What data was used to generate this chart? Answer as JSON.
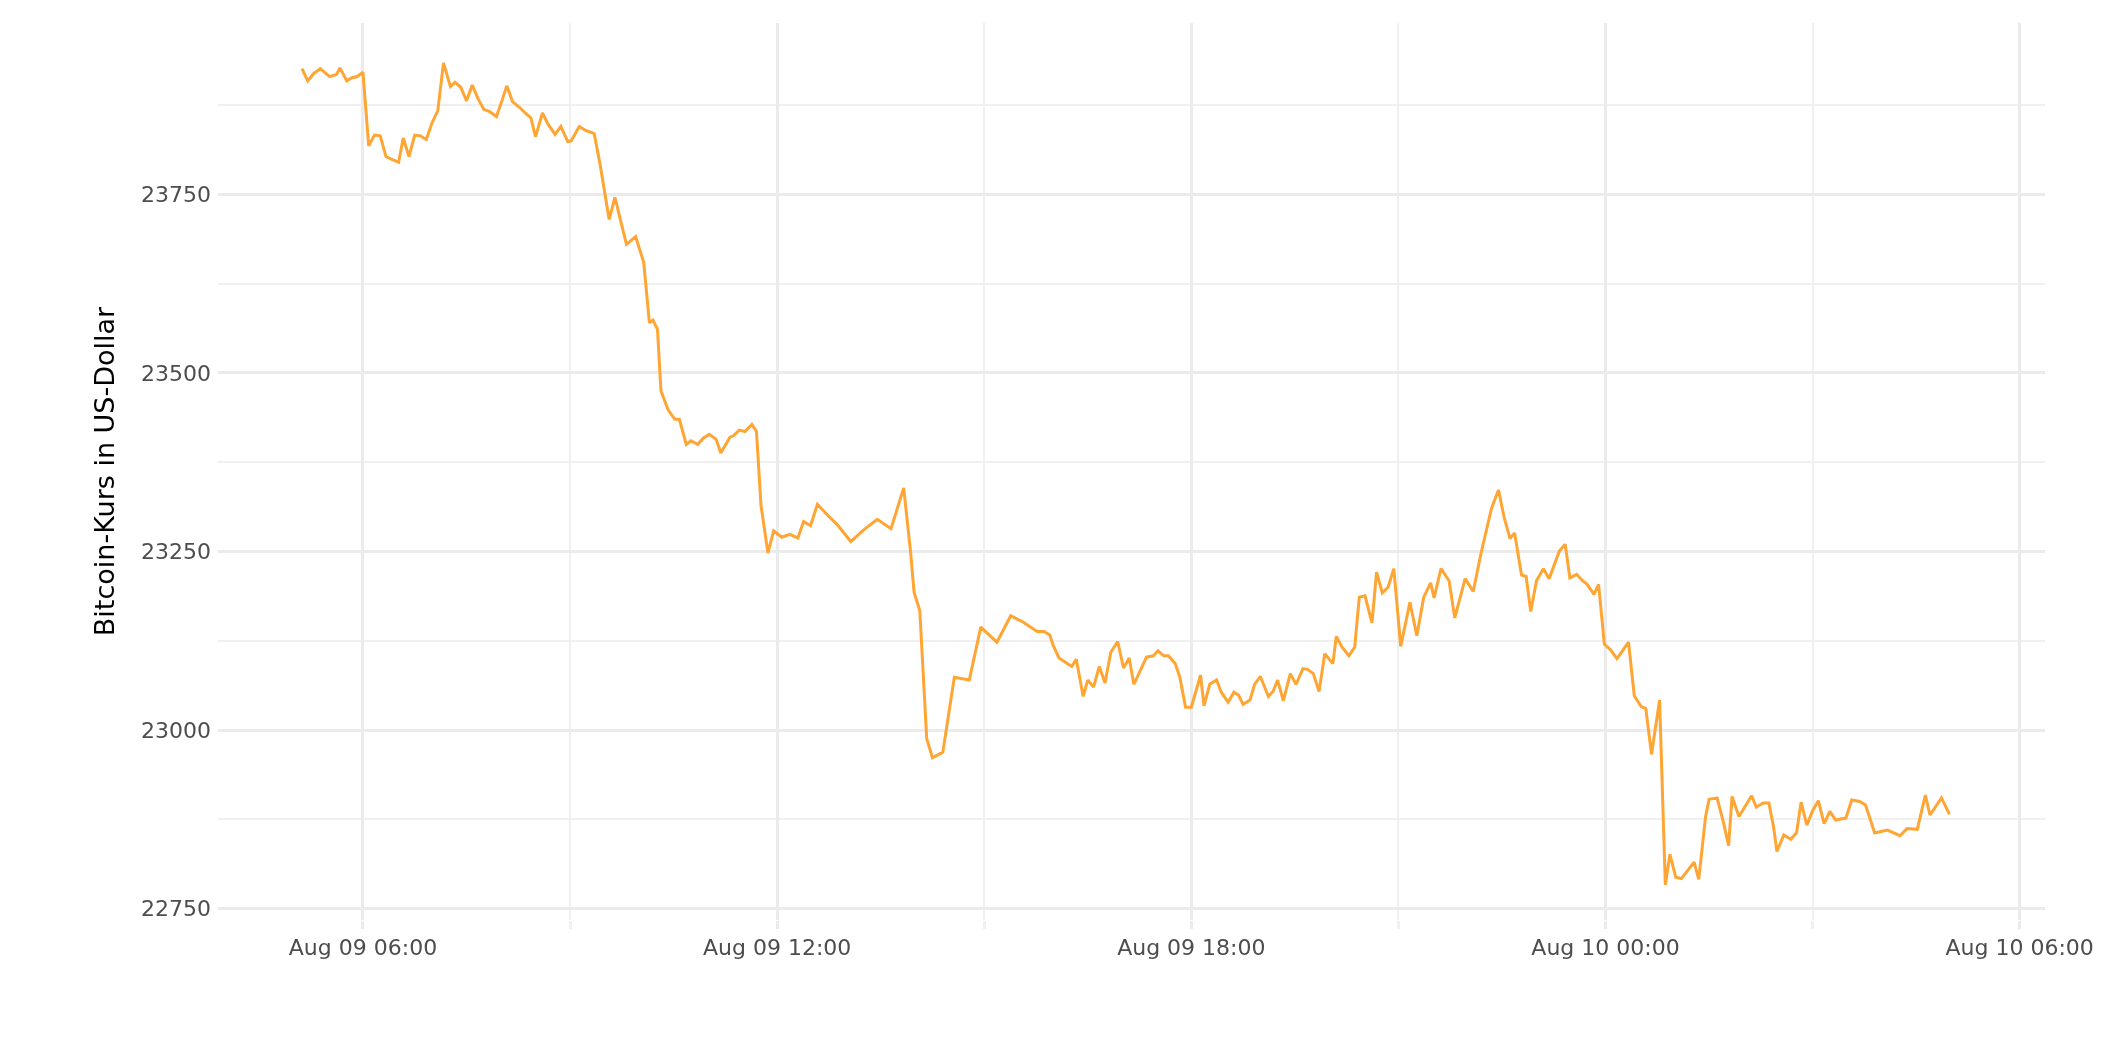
{
  "chart_data": {
    "type": "line",
    "ylabel": "Bitcoin-Kurs in US-Dollar",
    "x": [
      "--08-09T05:07",
      "--08-09T05:12",
      "--08-09T05:17",
      "--08-09T05:23",
      "--08-09T05:31",
      "--08-09T05:37",
      "--08-09T05:40",
      "--08-09T05:46",
      "--08-09T05:50",
      "--08-09T05:55",
      "--08-09T06:00",
      "--08-09T06:05",
      "--08-09T06:10",
      "--08-09T06:15",
      "--08-09T06:20",
      "--08-09T06:25",
      "--08-09T06:31",
      "--08-09T06:35",
      "--08-09T06:40",
      "--08-09T06:45",
      "--08-09T06:50",
      "--08-09T06:55",
      "--08-09T07:00",
      "--08-09T07:05",
      "--08-09T07:10",
      "--08-09T07:16",
      "--08-09T07:20",
      "--08-09T07:25",
      "--08-09T07:30",
      "--08-09T07:35",
      "--08-09T07:40",
      "--08-09T07:45",
      "--08-09T07:50",
      "--08-09T07:56",
      "--08-09T08:01",
      "--08-09T08:05",
      "--08-09T08:10",
      "--08-09T08:16",
      "--08-09T08:21",
      "--08-09T08:26",
      "--08-09T08:30",
      "--08-09T08:36",
      "--08-09T08:41",
      "--08-09T08:47",
      "--08-09T08:52",
      "--08-09T08:58",
      "--08-09T09:01",
      "--08-09T09:08",
      "--08-09T09:13",
      "--08-09T09:21",
      "--08-09T09:26",
      "--08-09T09:34",
      "--08-09T09:39",
      "--08-09T09:44",
      "--08-09T09:49",
      "--08-09T09:57",
      "--08-09T10:04",
      "--08-09T10:09",
      "--08-09T10:12",
      "--08-09T10:16",
      "--08-09T10:19",
      "--08-09T10:25",
      "--08-09T10:31",
      "--08-09T10:35",
      "--08-09T10:41",
      "--08-09T10:45",
      "--08-09T10:51",
      "--08-09T10:56",
      "--08-09T11:01",
      "--08-09T11:07",
      "--08-09T11:11",
      "--08-09T11:19",
      "--08-09T11:22",
      "--08-09T11:27",
      "--08-09T11:32",
      "--08-09T11:38",
      "--08-09T11:42",
      "--08-09T11:46",
      "--08-09T11:52",
      "--08-09T11:57",
      "--08-09T12:04",
      "--08-09T12:11",
      "--08-09T12:18",
      "--08-09T12:23",
      "--08-09T12:29",
      "--08-09T12:35",
      "--08-09T12:45",
      "--08-09T12:52",
      "--08-09T13:04",
      "--08-09T13:15",
      "--08-09T13:27",
      "--08-09T13:39",
      "--08-09T13:50",
      "--08-09T13:56",
      "--08-09T13:59",
      "--08-09T14:04",
      "--08-09T14:10",
      "--08-09T14:15",
      "--08-09T14:24",
      "--08-09T14:34",
      "--08-09T14:47",
      "--08-09T14:57",
      "--08-09T15:11",
      "--08-09T15:23",
      "--08-09T15:34",
      "--08-09T15:46",
      "--08-09T15:52",
      "--08-09T15:57",
      "--08-09T16:00",
      "--08-09T16:05",
      "--08-09T16:16",
      "--08-09T16:20",
      "--08-09T16:26",
      "--08-09T16:30",
      "--08-09T16:35",
      "--08-09T16:40",
      "--08-09T16:45",
      "--08-09T16:50",
      "--08-09T16:56",
      "--08-09T17:01",
      "--08-09T17:06",
      "--08-09T17:10",
      "--08-09T17:15",
      "--08-09T17:21",
      "--08-09T17:27",
      "--08-09T17:31",
      "--08-09T17:36",
      "--08-09T17:40",
      "--08-09T17:46",
      "--08-09T17:50",
      "--08-09T17:55",
      "--08-09T18:00",
      "--08-09T18:08",
      "--08-09T18:11",
      "--08-09T18:16",
      "--08-09T18:22",
      "--08-09T18:26",
      "--08-09T18:32",
      "--08-09T18:37",
      "--08-09T18:41",
      "--08-09T18:45",
      "--08-09T18:51",
      "--08-09T18:55",
      "--08-09T19:00",
      "--08-09T19:07",
      "--08-09T19:11",
      "--08-09T19:15",
      "--08-09T19:20",
      "--08-09T19:26",
      "--08-09T19:31",
      "--08-09T19:37",
      "--08-09T19:41",
      "--08-09T19:46",
      "--08-09T19:51",
      "--08-09T19:56",
      "--08-09T20:03",
      "--08-09T20:06",
      "--08-09T20:11",
      "--08-09T20:17",
      "--08-09T20:22",
      "--08-09T20:26",
      "--08-09T20:31",
      "--08-09T20:37",
      "--08-09T20:41",
      "--08-09T20:46",
      "--08-09T20:51",
      "--08-09T20:56",
      "--08-09T21:02",
      "--08-09T21:10",
      "--08-09T21:16",
      "--08-09T21:22",
      "--08-09T21:28",
      "--08-09T21:31",
      "--08-09T21:37",
      "--08-09T21:44",
      "--08-09T21:49",
      "--08-09T21:58",
      "--08-09T22:05",
      "--08-09T22:12",
      "--08-09T22:21",
      "--08-09T22:27",
      "--08-09T22:32",
      "--08-09T22:37",
      "--08-09T22:41",
      "--08-09T22:47",
      "--08-09T22:51",
      "--08-09T22:55",
      "--08-09T23:00",
      "--08-09T23:06",
      "--08-09T23:11",
      "--08-09T23:20",
      "--08-09T23:25",
      "--08-09T23:29",
      "--08-09T23:35",
      "--08-09T23:40",
      "--08-09T23:44",
      "--08-09T23:50",
      "--08-09T23:54",
      "--08-09T23:59",
      "--08-10T00:04",
      "--08-10T00:10",
      "--08-10T00:20",
      "--08-10T00:25",
      "--08-10T00:31",
      "--08-10T00:35",
      "--08-10T00:40",
      "--08-10T00:47",
      "--08-10T00:52",
      "--08-10T00:56",
      "--08-10T01:01",
      "--08-10T01:06",
      "--08-10T01:17",
      "--08-10T01:21",
      "--08-10T01:27",
      "--08-10T01:30",
      "--08-10T01:37",
      "--08-10T01:42",
      "--08-10T01:47",
      "--08-10T01:50",
      "--08-10T01:56",
      "--08-10T02:07",
      "--08-10T02:11",
      "--08-10T02:17",
      "--08-10T02:22",
      "--08-10T02:26",
      "--08-10T02:29",
      "--08-10T02:35",
      "--08-10T02:41",
      "--08-10T02:46",
      "--08-10T02:50",
      "--08-10T02:55",
      "--08-10T03:00",
      "--08-10T03:05",
      "--08-10T03:10",
      "--08-10T03:15",
      "--08-10T03:20",
      "--08-10T03:29",
      "--08-10T03:34",
      "--08-10T03:41",
      "--08-10T03:46",
      "--08-10T03:54",
      "--08-10T04:05",
      "--08-10T04:16",
      "--08-10T04:22",
      "--08-10T04:31",
      "--08-10T04:38",
      "--08-10T04:42",
      "--08-10T04:52",
      "--08-10T04:59"
    ],
    "series": [
      {
        "color": "#ffa533",
        "values": [
          23926,
          23909,
          23919,
          23926,
          23915,
          23918,
          23927,
          23909,
          23913,
          23915,
          23921,
          23818,
          23833,
          23832,
          23803,
          23799,
          23795,
          23829,
          23803,
          23833,
          23832,
          23827,
          23850,
          23867,
          23934,
          23901,
          23907,
          23900,
          23881,
          23903,
          23884,
          23869,
          23866,
          23859,
          23882,
          23902,
          23880,
          23872,
          23864,
          23857,
          23831,
          23864,
          23848,
          23834,
          23845,
          23824,
          23825,
          23845,
          23840,
          23835,
          23793,
          23715,
          23746,
          23713,
          23680,
          23691,
          23655,
          23570,
          23574,
          23561,
          23475,
          23449,
          23435,
          23435,
          23400,
          23405,
          23400,
          23409,
          23414,
          23407,
          23388,
          23410,
          23412,
          23420,
          23418,
          23428,
          23418,
          23314,
          23248,
          23279,
          23270,
          23274,
          23269,
          23292,
          23286,
          23316,
          23299,
          23288,
          23264,
          23280,
          23295,
          23282,
          23339,
          23249,
          23193,
          23167,
          22988,
          22961,
          22969,
          23074,
          23070,
          23144,
          23123,
          23160,
          23151,
          23138,
          23138,
          23133,
          23118,
          23101,
          23089,
          23099,
          23047,
          23070,
          23060,
          23089,
          23066,
          23109,
          23124,
          23087,
          23101,
          23064,
          23081,
          23102,
          23104,
          23111,
          23104,
          23104,
          23093,
          23074,
          23032,
          23032,
          23077,
          23034,
          23064,
          23070,
          23053,
          23039,
          23053,
          23049,
          23036,
          23042,
          23064,
          23075,
          23047,
          23054,
          23070,
          23041,
          23079,
          23064,
          23086,
          23085,
          23079,
          23054,
          23107,
          23093,
          23131,
          23116,
          23104,
          23116,
          23186,
          23188,
          23150,
          23221,
          23192,
          23200,
          23226,
          23117,
          23179,
          23132,
          23186,
          23206,
          23185,
          23226,
          23209,
          23157,
          23212,
          23194,
          23249,
          23311,
          23336,
          23297,
          23268,
          23276,
          23217,
          23215,
          23166,
          23209,
          23226,
          23212,
          23251,
          23260,
          23213,
          23218,
          23209,
          23204,
          23190,
          23204,
          23120,
          23113,
          23100,
          23123,
          23048,
          23033,
          23030,
          22966,
          23042,
          22783,
          22826,
          22794,
          22792,
          22815,
          22791,
          22879,
          22903,
          22905,
          22874,
          22838,
          22907,
          22879,
          22908,
          22892,
          22898,
          22898,
          22865,
          22830,
          22853,
          22847,
          22856,
          22899,
          22867,
          22887,
          22901,
          22869,
          22886,
          22874,
          22877,
          22902,
          22900,
          22895,
          22856,
          22860,
          22852,
          22862,
          22861,
          22909,
          22881,
          22905,
          22882
        ]
      }
    ],
    "xlim": [
      "--08-09T03:54",
      "--08-10T06:22"
    ],
    "xticks": [
      {
        "value": "--08-09T06:00",
        "label": "Aug 09 06:00"
      },
      {
        "value": "--08-09T09:00",
        "label": null
      },
      {
        "value": "--08-09T12:00",
        "label": "Aug 09 12:00"
      },
      {
        "value": "--08-09T15:00",
        "label": null
      },
      {
        "value": "--08-09T18:00",
        "label": "Aug 09 18:00"
      },
      {
        "value": "--08-09T21:00",
        "label": null
      },
      {
        "value": "--08-10T00:00",
        "label": "Aug 10 00:00"
      },
      {
        "value": "--08-10T03:00",
        "label": null
      },
      {
        "value": "--08-10T06:00",
        "label": "Aug 10 06:00"
      }
    ],
    "ylim": [
      22734,
      23990
    ],
    "yticks": [
      22750,
      {
        "value": 22875,
        "label": null
      },
      23000,
      {
        "value": 23125,
        "label": null
      },
      23250,
      {
        "value": 23375,
        "label": null
      },
      23500,
      {
        "value": 23625,
        "label": null
      },
      23750,
      {
        "value": 23875,
        "label": null
      }
    ],
    "grid": true,
    "line_style": "solid",
    "marker": "none"
  }
}
